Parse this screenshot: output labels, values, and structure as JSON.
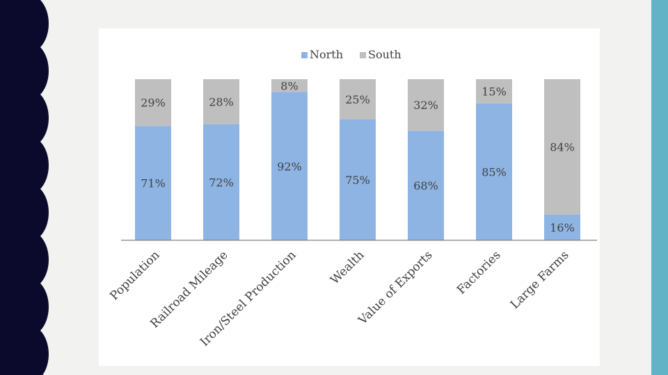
{
  "theme": {
    "left_band_color": "#0b0a2c",
    "right_band_color": "#63b3c6",
    "background": "#f2f2f0"
  },
  "chart_data": {
    "type": "bar",
    "stacked": true,
    "percent_stacked": true,
    "categories": [
      "Population",
      "Railroad Mileage",
      "Iron/Steel Production",
      "Wealth",
      "Value of Exports",
      "Factories",
      "Large Farms"
    ],
    "series": [
      {
        "name": "North",
        "color": "#8eb4e3",
        "values": [
          71,
          72,
          92,
          75,
          68,
          85,
          16
        ],
        "labels": [
          "71%",
          "72%",
          "92%",
          "75%",
          "68%",
          "85%",
          "16%"
        ]
      },
      {
        "name": "South",
        "color": "#bfbfbf",
        "values": [
          29,
          28,
          8,
          25,
          32,
          15,
          84
        ],
        "labels": [
          "29%",
          "28%",
          "8%",
          "25%",
          "32%",
          "15%",
          "84%"
        ]
      }
    ],
    "ylim": [
      0,
      100
    ],
    "legend": "top",
    "grid": false,
    "category_label_rotation": -45
  }
}
